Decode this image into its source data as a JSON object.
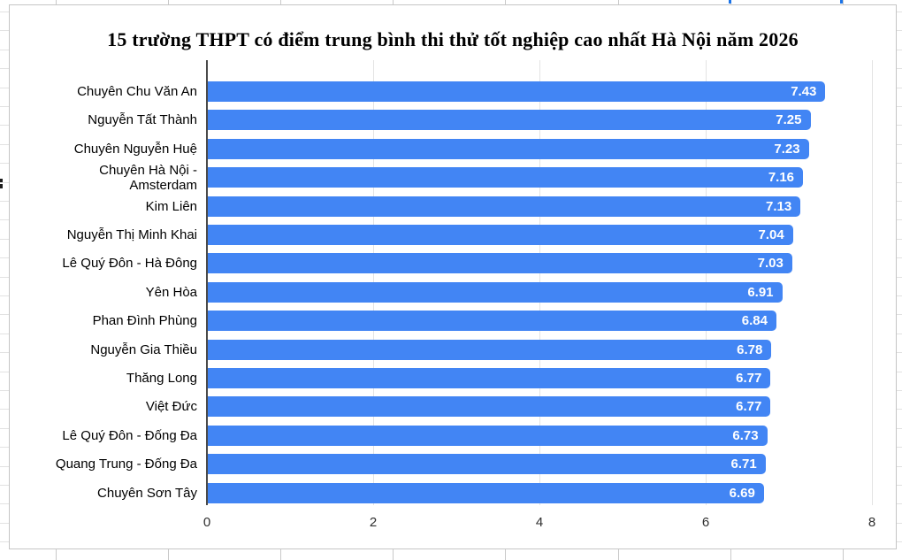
{
  "chart_title": "15 trường THPT có điểm trung bình thi thử tốt nghiệp cao nhất Hà Nội năm 2026",
  "chart_data": {
    "type": "bar",
    "orientation": "horizontal",
    "title": "15 trường THPT có điểm trung bình thi thử tốt nghiệp cao nhất Hà Nội năm 2026",
    "categories": [
      "Chuyên Chu Văn An",
      "Nguyễn Tất Thành",
      "Chuyên Nguyễn Huệ",
      "Chuyên Hà Nội -\nAmsterdam",
      "Kim Liên",
      "Nguyễn Thị Minh Khai",
      "Lê Quý Đôn - Hà Đông",
      "Yên Hòa",
      "Phan Đình Phùng",
      "Nguyễn Gia Thiều",
      "Thăng Long",
      "Việt Đức",
      "Lê Quý Đôn - Đống Đa",
      "Quang Trung - Đống Đa",
      "Chuyên Sơn Tây"
    ],
    "values": [
      7.43,
      7.25,
      7.23,
      7.16,
      7.13,
      7.04,
      7.03,
      6.91,
      6.84,
      6.78,
      6.77,
      6.77,
      6.73,
      6.71,
      6.69
    ],
    "value_labels": [
      "7.43",
      "7.25",
      "7.23",
      "7.16",
      "7.13",
      "7.04",
      "7.03",
      "6.91",
      "6.84",
      "6.78",
      "6.77",
      "6.77",
      "6.73",
      "6.71",
      "6.69"
    ],
    "xlabel": "",
    "ylabel": "",
    "x_ticks": [
      "0",
      "2",
      "4",
      "6",
      "8"
    ],
    "xlim": [
      0,
      8
    ],
    "grid": true,
    "legend": "none",
    "bar_color": "#4285f4",
    "value_label_color": "#ffffff"
  }
}
